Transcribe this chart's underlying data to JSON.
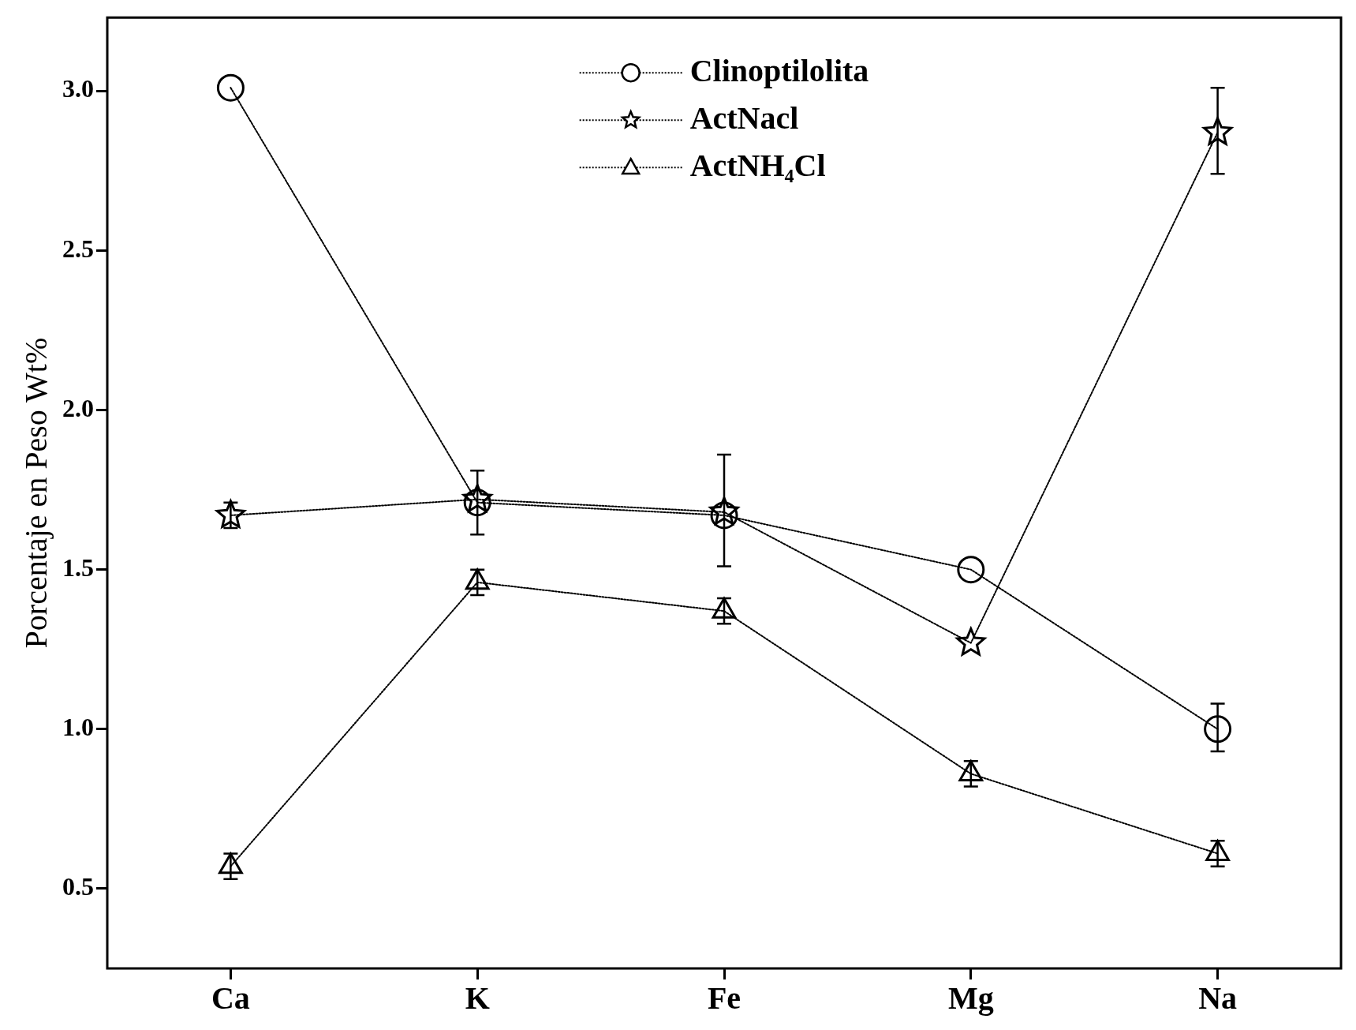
{
  "chart_data": {
    "type": "line",
    "ylabel": "Porcentaje en Peso Wt%",
    "categories": [
      "Ca",
      "K",
      "Fe",
      "Mg",
      "Na"
    ],
    "series": [
      {
        "name": "Clinoptilolita",
        "color": "#000000",
        "marker": "circle",
        "values": [
          3.01,
          1.71,
          1.67,
          1.5,
          1.0
        ],
        "errors": [
          null,
          null,
          [
            1.51,
            1.86
          ],
          null,
          [
            0.93,
            1.08
          ]
        ]
      },
      {
        "name": "ActNacl",
        "color": "#000000",
        "marker": "star",
        "values": [
          1.67,
          1.72,
          1.68,
          1.27,
          2.87
        ],
        "errors": [
          [
            1.63,
            1.71
          ],
          [
            1.61,
            1.81
          ],
          null,
          null,
          [
            2.74,
            3.01
          ]
        ]
      },
      {
        "name": "ActNH₄Cl",
        "color": "#000000",
        "marker": "triangle",
        "values": [
          0.57,
          1.46,
          1.37,
          0.86,
          0.61
        ],
        "errors": [
          0.04,
          0.04,
          0.04,
          0.04,
          0.04
        ]
      }
    ],
    "ylim": [
      0.25,
      3.23
    ],
    "yticks": [
      0.5,
      {
        "value": 1,
        "label": "1.0"
      },
      1.5,
      {
        "value": 2,
        "label": "2.0"
      },
      2.5,
      {
        "value": 3,
        "label": "3.0"
      }
    ],
    "grid": false,
    "legend": "top",
    "line_style": "dotted"
  }
}
